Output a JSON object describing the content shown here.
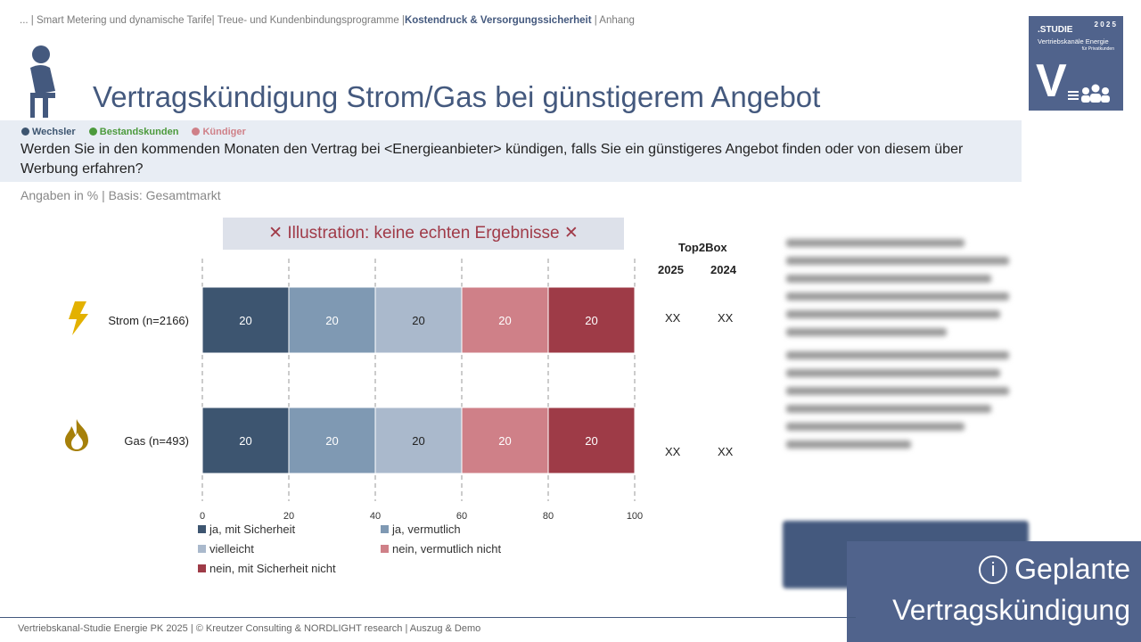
{
  "breadcrumb": {
    "items": [
      "... | Smart Metering und dynamische Tarife| Treue- und Kundenbindungsprogramme |"
    ],
    "active": "Kostendruck & Versorgungssicherheit",
    "after": " | Anhang"
  },
  "logo": {
    "studie": ".STUDIE",
    "year": "2 0 2 5",
    "line1": "Vertriebskanäle Energie",
    "line2": "für Privatkunden",
    "letter": "V"
  },
  "title": "Vertragskündigung Strom/Gas bei günstigerem Angebot",
  "segments": [
    {
      "label": "Wechsler",
      "color": "#3d5570"
    },
    {
      "label": "Bestandskunden",
      "color": "#4c9a3c"
    },
    {
      "label": "Kündiger",
      "color": "#cf8088"
    }
  ],
  "question": "Werden Sie in den kommenden Monaten den Vertrag bei <Energieanbieter> kündigen, falls Sie ein günstigeres Angebot finden oder von diesem über Werbung erfahren?",
  "basis": "Angaben in % | Basis: Gesamtmarkt",
  "top2box": {
    "title": "Top2Box",
    "years": [
      "2025",
      "2024"
    ],
    "rows": [
      [
        "XX",
        "XX"
      ],
      [
        "XX",
        "XX"
      ]
    ]
  },
  "watermark": "✕ Illustration: keine echten Ergebnisse ✕",
  "chart_data": {
    "type": "bar",
    "orientation": "horizontal",
    "stacked": true,
    "categories": [
      "Strom (n=2166)",
      "Gas (n=493)"
    ],
    "series": [
      {
        "name": "ja, mit Sicherheit",
        "values": [
          20,
          20
        ],
        "color": "#3d5570"
      },
      {
        "name": "ja, vermutlich",
        "values": [
          20,
          20
        ],
        "color": "#7f99b3"
      },
      {
        "name": "vielleicht",
        "values": [
          20,
          20
        ],
        "color": "#aab9cc"
      },
      {
        "name": "nein, vermutlich nicht",
        "values": [
          20,
          20
        ],
        "color": "#cf8088"
      },
      {
        "name": "nein, mit Sicherheit nicht",
        "values": [
          20,
          20
        ],
        "color": "#9e3b47"
      }
    ],
    "xlim": [
      0,
      100
    ],
    "xticks": [
      "0",
      "20",
      "40",
      "60",
      "80",
      "100"
    ],
    "grid": true,
    "legend": "bottom"
  },
  "info": {
    "line1": "Geplante",
    "line2": "Vertragskündigung"
  },
  "footer": "Vertriebskanal-Studie Energie PK 2025 | © Kreutzer Consulting & NORDLIGHT research | Auszug & Demo"
}
